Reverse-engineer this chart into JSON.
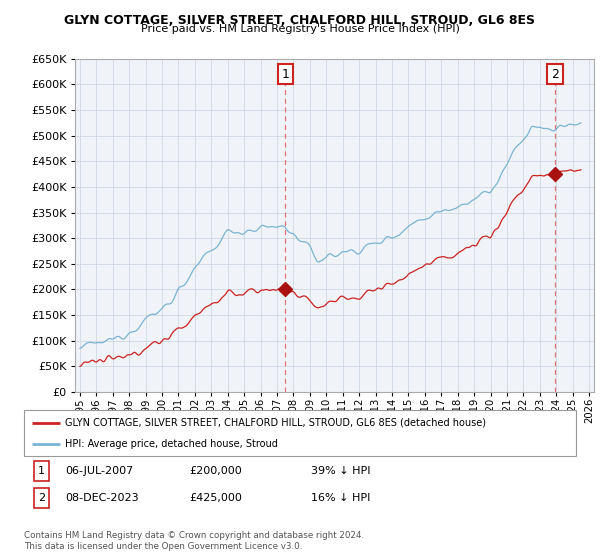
{
  "title": "GLYN COTTAGE, SILVER STREET, CHALFORD HILL, STROUD, GL6 8ES",
  "subtitle": "Price paid vs. HM Land Registry's House Price Index (HPI)",
  "legend_line1": "GLYN COTTAGE, SILVER STREET, CHALFORD HILL, STROUD, GL6 8ES (detached house)",
  "legend_line2": "HPI: Average price, detached house, Stroud",
  "annotation1_date": "06-JUL-2007",
  "annotation1_price": "£200,000",
  "annotation1_hpi": "39% ↓ HPI",
  "annotation2_date": "08-DEC-2023",
  "annotation2_price": "£425,000",
  "annotation2_hpi": "16% ↓ HPI",
  "footer1": "Contains HM Land Registry data © Crown copyright and database right 2024.",
  "footer2": "This data is licensed under the Open Government Licence v3.0.",
  "ylim": [
    0,
    650000
  ],
  "yticks": [
    0,
    50000,
    100000,
    150000,
    200000,
    250000,
    300000,
    350000,
    400000,
    450000,
    500000,
    550000,
    600000,
    650000
  ],
  "hpi_color": "#7ab3d4",
  "price_color": "#cc2222",
  "vline_color": "#e06060",
  "dot_color": "#aa1111",
  "background_color": "#ffffff",
  "chart_bg": "#f0f4f8",
  "grid_color": "#c8d4e0",
  "sale1_year": 2007.51,
  "sale2_year": 2023.93,
  "sale1_price": 200000,
  "sale2_price": 425000
}
